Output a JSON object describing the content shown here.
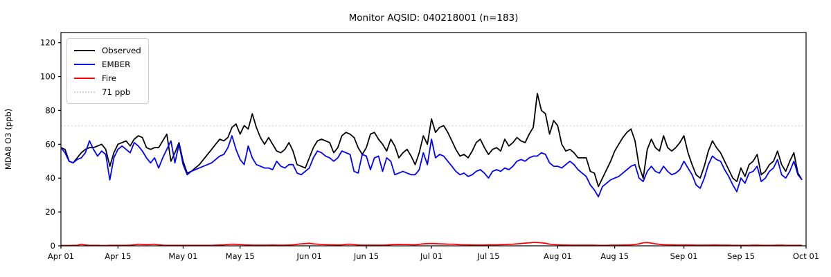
{
  "figure": {
    "title": "Monitor AQSID: 040218001 (n=183)",
    "ylabel": "MDA8 O3 (ppb)"
  },
  "legend": {
    "items": [
      {
        "label": "Observed",
        "color": "#000000",
        "style": "solid"
      },
      {
        "label": "EMBER",
        "color": "#0000ff",
        "style": "solid"
      },
      {
        "label": "Fire",
        "color": "#ff0000",
        "style": "solid"
      },
      {
        "label": "71 ppb",
        "color": "#d3d3d3",
        "style": "dotted"
      }
    ]
  },
  "chart_data": {
    "type": "line",
    "title": "Monitor AQSID: 040218001 (n=183)",
    "xlabel": "",
    "ylabel": "MDA8 O3 (ppb)",
    "n_days": 183,
    "x_range": [
      "Apr 01",
      "Oct 01"
    ],
    "ylim": [
      0,
      126
    ],
    "y_ticks": [
      0,
      20,
      40,
      60,
      80,
      100,
      120
    ],
    "x_ticks": [
      {
        "label": "Apr 01",
        "day": 0
      },
      {
        "label": "Apr 15",
        "day": 14
      },
      {
        "label": "May 01",
        "day": 30
      },
      {
        "label": "May 15",
        "day": 44
      },
      {
        "label": "Jun 01",
        "day": 61
      },
      {
        "label": "Jun 15",
        "day": 75
      },
      {
        "label": "Jul 01",
        "day": 91
      },
      {
        "label": "Jul 15",
        "day": 105
      },
      {
        "label": "Aug 01",
        "day": 122
      },
      {
        "label": "Aug 15",
        "day": 136
      },
      {
        "label": "Sep 01",
        "day": 153
      },
      {
        "label": "Sep 15",
        "day": 167
      },
      {
        "label": "Oct 01",
        "day": 183
      }
    ],
    "threshold": {
      "value": 71,
      "label": "71 ppb",
      "color": "#d3d3d3"
    },
    "grid": false,
    "legend_position": "upper left",
    "series": [
      {
        "name": "Observed",
        "color": "#000000",
        "values": [
          58,
          57,
          50,
          49,
          52,
          55,
          57,
          58,
          58,
          59,
          60,
          57,
          47,
          55,
          60,
          61,
          62,
          59,
          63,
          65,
          64,
          58,
          57,
          58,
          58,
          62,
          66,
          50,
          55,
          61,
          50,
          43,
          44,
          46,
          48,
          51,
          54,
          57,
          60,
          63,
          62,
          64,
          70,
          72,
          66,
          71,
          69,
          78,
          70,
          64,
          60,
          64,
          60,
          56,
          55,
          57,
          61,
          56,
          48,
          47,
          46,
          52,
          58,
          62,
          63,
          62,
          61,
          55,
          58,
          65,
          67,
          66,
          64,
          58,
          54,
          58,
          66,
          67,
          63,
          60,
          56,
          63,
          59,
          52,
          55,
          57,
          53,
          48,
          55,
          65,
          60,
          75,
          67,
          70,
          71,
          67,
          62,
          57,
          53,
          54,
          52,
          56,
          61,
          63,
          58,
          54,
          57,
          58,
          56,
          63,
          59,
          61,
          64,
          62,
          61,
          66,
          70,
          90,
          80,
          78,
          66,
          74,
          71,
          60,
          56,
          57,
          55,
          52,
          52,
          52,
          44,
          43,
          35,
          40,
          45,
          50,
          56,
          60,
          64,
          67,
          69,
          62,
          47,
          40,
          57,
          63,
          58,
          56,
          65,
          58,
          56,
          58,
          61,
          65,
          55,
          48,
          42,
          40,
          47,
          56,
          62,
          58,
          55,
          50,
          45,
          40,
          38,
          46,
          41,
          48,
          50,
          54,
          42,
          44,
          48,
          50,
          56,
          48,
          44,
          50,
          55,
          43,
          39
        ]
      },
      {
        "name": "EMBER",
        "color": "#0000ff",
        "values": [
          58,
          55,
          50,
          49,
          51,
          52,
          55,
          62,
          57,
          53,
          56,
          54,
          39,
          52,
          57,
          59,
          57,
          55,
          61,
          59,
          56,
          52,
          49,
          52,
          46,
          52,
          57,
          62,
          49,
          60,
          48,
          42,
          44,
          45,
          46,
          47,
          48,
          49,
          51,
          53,
          54,
          58,
          65,
          57,
          51,
          48,
          59,
          52,
          48,
          47,
          46,
          46,
          45,
          50,
          47,
          46,
          48,
          48,
          43,
          42,
          44,
          46,
          52,
          56,
          55,
          53,
          52,
          50,
          52,
          56,
          55,
          54,
          44,
          43,
          54,
          53,
          45,
          52,
          53,
          44,
          52,
          50,
          42,
          43,
          44,
          43,
          42,
          42,
          45,
          55,
          48,
          63,
          52,
          54,
          53,
          50,
          47,
          44,
          42,
          43,
          41,
          42,
          44,
          45,
          43,
          40,
          44,
          45,
          44,
          46,
          45,
          47,
          50,
          51,
          50,
          52,
          53,
          53,
          55,
          54,
          49,
          47,
          47,
          46,
          48,
          50,
          48,
          45,
          43,
          41,
          36,
          33,
          29,
          35,
          37,
          39,
          40,
          41,
          43,
          45,
          47,
          48,
          40,
          38,
          44,
          47,
          44,
          43,
          47,
          44,
          42,
          43,
          45,
          50,
          46,
          42,
          36,
          34,
          40,
          48,
          53,
          51,
          50,
          45,
          41,
          36,
          32,
          40,
          37,
          43,
          44,
          47,
          38,
          40,
          44,
          46,
          51,
          42,
          40,
          44,
          50,
          42,
          39
        ]
      },
      {
        "name": "Fire",
        "color": "#ff0000",
        "values": [
          0.2,
          0.2,
          0.2,
          0.3,
          0.3,
          1.0,
          0.5,
          0.3,
          0.3,
          0.3,
          0.2,
          0.2,
          0.3,
          0.3,
          0.3,
          0.3,
          0.3,
          0.4,
          0.6,
          1.0,
          0.8,
          0.7,
          0.8,
          1.0,
          0.6,
          0.4,
          0.3,
          0.3,
          0.3,
          0.3,
          0.3,
          0.3,
          0.3,
          0.3,
          0.3,
          0.3,
          0.3,
          0.3,
          0.4,
          0.5,
          0.6,
          0.8,
          1.0,
          0.9,
          0.8,
          0.6,
          0.5,
          0.4,
          0.4,
          0.4,
          0.4,
          0.4,
          0.5,
          0.4,
          0.4,
          0.4,
          0.5,
          0.6,
          0.9,
          1.2,
          1.3,
          1.5,
          1.2,
          1.0,
          0.8,
          0.7,
          0.6,
          0.6,
          0.5,
          0.6,
          0.9,
          1.0,
          0.8,
          0.5,
          0.4,
          0.4,
          0.4,
          0.4,
          0.4,
          0.4,
          0.5,
          0.7,
          0.8,
          0.9,
          0.8,
          0.8,
          0.7,
          0.6,
          0.9,
          1.2,
          1.3,
          1.4,
          1.3,
          1.2,
          1.1,
          1.0,
          1.0,
          0.9,
          0.7,
          0.6,
          0.6,
          0.5,
          0.5,
          0.5,
          0.5,
          0.6,
          0.6,
          0.6,
          0.7,
          0.8,
          0.9,
          1.0,
          1.2,
          1.4,
          1.6,
          1.8,
          2.0,
          2.0,
          1.8,
          1.5,
          1.0,
          0.8,
          0.6,
          0.5,
          0.5,
          0.4,
          0.4,
          0.4,
          0.4,
          0.4,
          0.4,
          0.4,
          0.3,
          0.3,
          0.3,
          0.4,
          0.4,
          0.4,
          0.5,
          0.5,
          0.6,
          0.8,
          1.2,
          1.8,
          2.0,
          1.6,
          1.2,
          0.9,
          0.7,
          0.6,
          0.6,
          0.5,
          0.5,
          0.5,
          0.5,
          0.5,
          0.4,
          0.4,
          0.4,
          0.4,
          0.5,
          0.5,
          0.4,
          0.4,
          0.4,
          0.3,
          0.3,
          0.3,
          0.3,
          0.3,
          0.4,
          0.4,
          0.3,
          0.3,
          0.3,
          0.3,
          0.4,
          0.4,
          0.3,
          0.3,
          0.3,
          0.3,
          0.3
        ]
      }
    ]
  }
}
